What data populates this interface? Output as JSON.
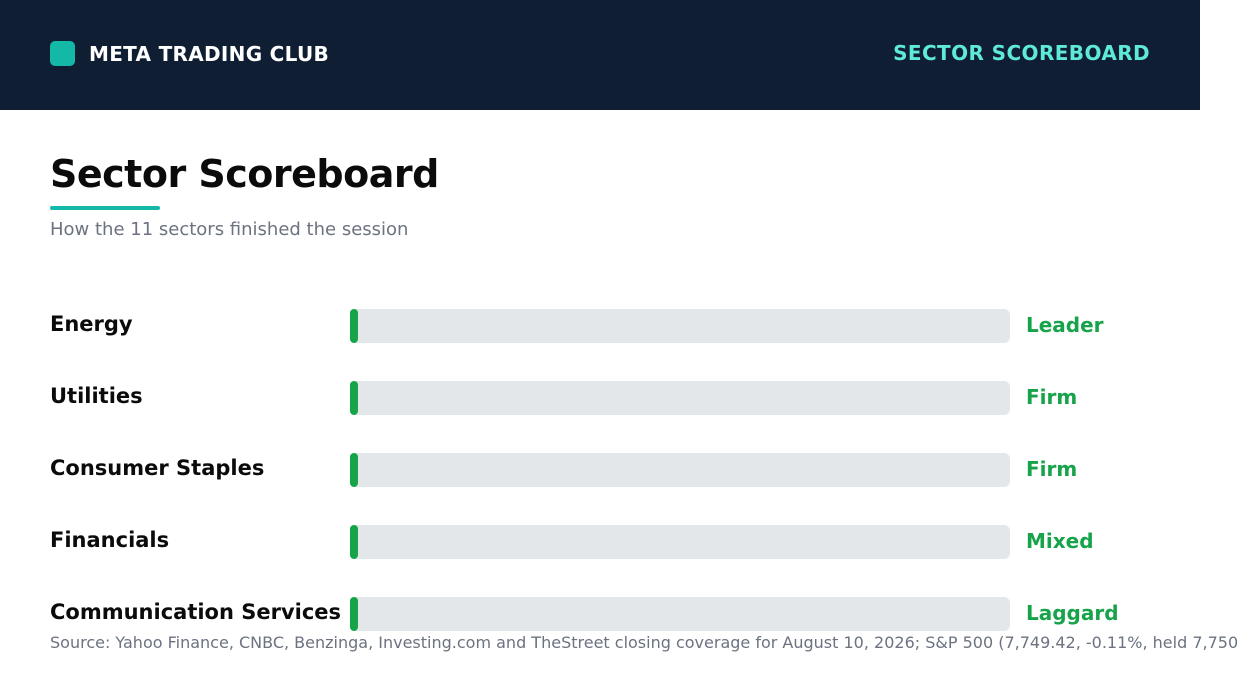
{
  "header": {
    "brand": "META TRADING CLUB",
    "section": "SECTOR SCOREBOARD"
  },
  "title": "Sector Scoreboard",
  "subtitle": "How the 11 sectors finished the session",
  "colors": {
    "header_bg": "#0f1e33",
    "accent": "#14b8a6",
    "accent_text": "#5eead4",
    "positive": "#16a34a",
    "track": "#e3e7ea"
  },
  "chart_data": {
    "type": "bar",
    "orientation": "horizontal",
    "categories": [
      "Energy",
      "Utilities",
      "Consumer Staples",
      "Financials",
      "Communication Services"
    ],
    "labels": [
      "Leader",
      "Firm",
      "Firm",
      "Mixed",
      "Laggard"
    ],
    "values": [
      0,
      0,
      0,
      0,
      0
    ],
    "xlim": [
      0,
      1
    ],
    "grid": false
  },
  "source": "Source: Yahoo Finance, CNBC, Benzinga, Investing.com and TheStreet closing coverage for August 10, 2026; S&P 500 (7,749.42, -0.11%, held 7,750"
}
